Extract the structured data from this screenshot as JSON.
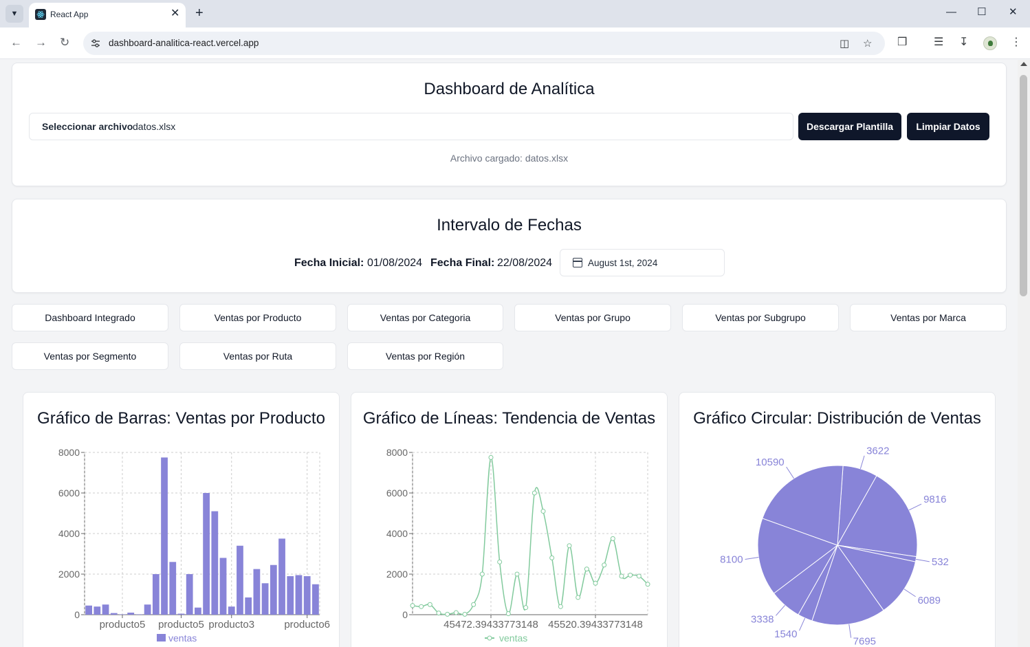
{
  "browser": {
    "tab_title": "React App",
    "url": "dashboard-analitica-react.vercel.app"
  },
  "upload": {
    "title": "Dashboard de Analítica",
    "file_button": "Seleccionar archivo",
    "file_name": "datos.xlsx",
    "download_button": "Descargar Plantilla",
    "clear_button": "Limpiar Datos",
    "loaded_text": "Archivo cargado: datos.xlsx"
  },
  "dates": {
    "title": "Intervalo de Fechas",
    "start_label": "Fecha Inicial:",
    "start_value": "01/08/2024",
    "end_label": "Fecha Final:",
    "end_value": "22/08/2024",
    "picker_value": "August 1st, 2024"
  },
  "tabs": [
    "Dashboard Integrado",
    "Ventas por Producto",
    "Ventas por Categoria",
    "Ventas por Grupo",
    "Ventas por Subgrupo",
    "Ventas por Marca",
    "Ventas por Segmento",
    "Ventas por Ruta",
    "Ventas por Región"
  ],
  "active_tab": 0,
  "colors": {
    "bar": "#8884d8",
    "line": "#82ca9d",
    "dark": "#0f172a"
  },
  "chart_data": [
    {
      "type": "bar",
      "title": "Gráfico de Barras: Ventas por Producto",
      "x_tick_labels": [
        "producto5",
        "producto5",
        "producto3",
        "producto6"
      ],
      "y_ticks": [
        0,
        2000,
        4000,
        6000,
        8000
      ],
      "ylim": [
        0,
        8000
      ],
      "grid": true,
      "legend": "bottom",
      "series": [
        {
          "name": "ventas",
          "values": [
            450,
            400,
            500,
            80,
            20,
            100,
            20,
            500,
            2000,
            7750,
            2600,
            50,
            2000,
            350,
            6000,
            5100,
            2800,
            400,
            3400,
            850,
            2250,
            1550,
            2450,
            3750,
            1900,
            1950,
            1900,
            1500
          ]
        }
      ]
    },
    {
      "type": "line",
      "title": "Gráfico de Líneas: Tendencia de Ventas",
      "x_tick_labels": [
        "45472.39433773148",
        "45520.39433773148"
      ],
      "y_ticks": [
        0,
        2000,
        4000,
        6000,
        8000
      ],
      "ylim": [
        0,
        8000
      ],
      "grid": true,
      "legend": "bottom",
      "series": [
        {
          "name": "ventas",
          "values": [
            450,
            400,
            500,
            80,
            20,
            100,
            20,
            500,
            2000,
            7750,
            2600,
            50,
            2000,
            350,
            6000,
            5100,
            2800,
            400,
            3400,
            850,
            2250,
            1550,
            2450,
            3750,
            1900,
            1950,
            1900,
            1500
          ]
        }
      ]
    },
    {
      "type": "pie",
      "title": "Gráfico Circular: Distribución de Ventas",
      "values": [
        3622,
        9816,
        532,
        6089,
        7695,
        1540,
        3338,
        8100,
        10590
      ],
      "labels": [
        "3622",
        "9816",
        "532",
        "6089",
        "7695",
        "1540",
        "3338",
        "8100",
        "10590"
      ]
    }
  ]
}
